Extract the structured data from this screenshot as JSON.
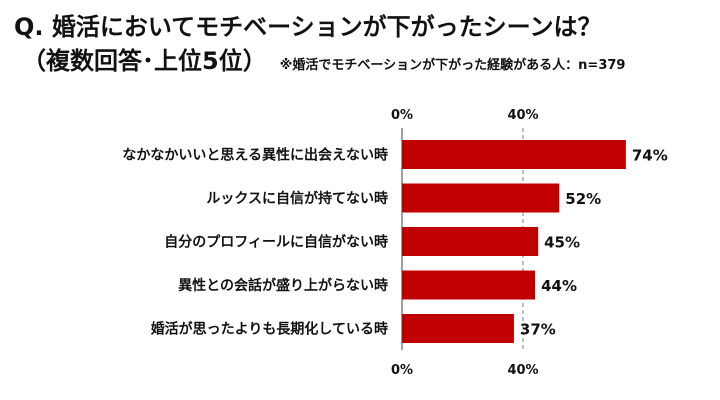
{
  "header": {
    "title": "Q. 婚活においてモチベーションが下がったシーンは？",
    "subtitle": "（複数回答･上位5位）",
    "note": "※婚活でモチベーションが下がった経験がある人：n=379"
  },
  "colors": {
    "bar": "#c00000",
    "text": "#111111",
    "gridline": "#7f7f7f"
  },
  "chart_data": {
    "type": "bar",
    "orientation": "horizontal",
    "categories": [
      "なかなかいいと思える異性に出会えない時",
      "ルックスに自信が持てない時",
      "自分のプロフィールに自信がない時",
      "異性との会話が盛り上がらない時",
      "婚活が思ったよりも長期化している時"
    ],
    "values": [
      74,
      52,
      45,
      44,
      37
    ],
    "value_labels": [
      "74%",
      "52%",
      "45%",
      "44%",
      "37%"
    ],
    "x_ticks": [
      0,
      40
    ],
    "x_tick_labels": [
      "0%",
      "40%"
    ],
    "xlim": [
      0,
      80
    ],
    "axis_label_positions": [
      "top",
      "bottom"
    ],
    "grid": true
  }
}
